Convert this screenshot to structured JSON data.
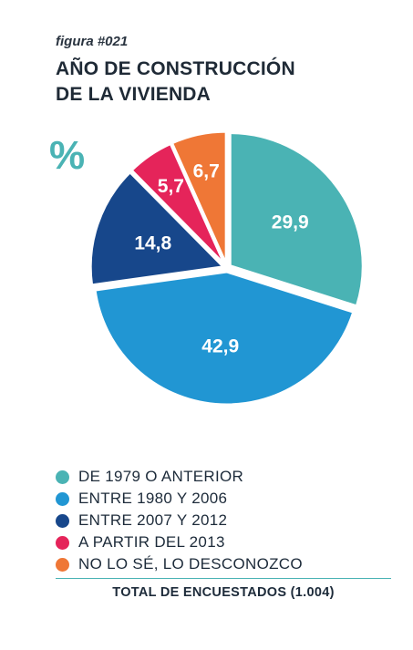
{
  "figure_label": "figura #021",
  "title_lines": [
    "AÑO DE CONSTRUCCIÓN",
    "DE LA VIVIENDA"
  ],
  "unit_symbol": "%",
  "chart_data": {
    "type": "pie",
    "title": "AÑO DE CONSTRUCCIÓN DE LA VIVIENDA",
    "unit": "%",
    "slices": [
      {
        "label": "DE 1979 O ANTERIOR",
        "value": 29.9,
        "display": "29,9",
        "color": "#4ab3b4"
      },
      {
        "label": "ENTRE 1980 Y 2006",
        "value": 42.9,
        "display": "42,9",
        "color": "#2196d3"
      },
      {
        "label": "ENTRE 2007 Y 2012",
        "value": 14.8,
        "display": "14,8",
        "color": "#17478b"
      },
      {
        "label": "A PARTIR DEL 2013",
        "value": 5.7,
        "display": "5,7",
        "color": "#e5245a"
      },
      {
        "label": "NO LO SÉ, LO DESCONOZCO",
        "value": 6.7,
        "display": "6,7",
        "color": "#ef7736"
      }
    ]
  },
  "footer": "TOTAL DE ENCUESTADOS (1.004)"
}
